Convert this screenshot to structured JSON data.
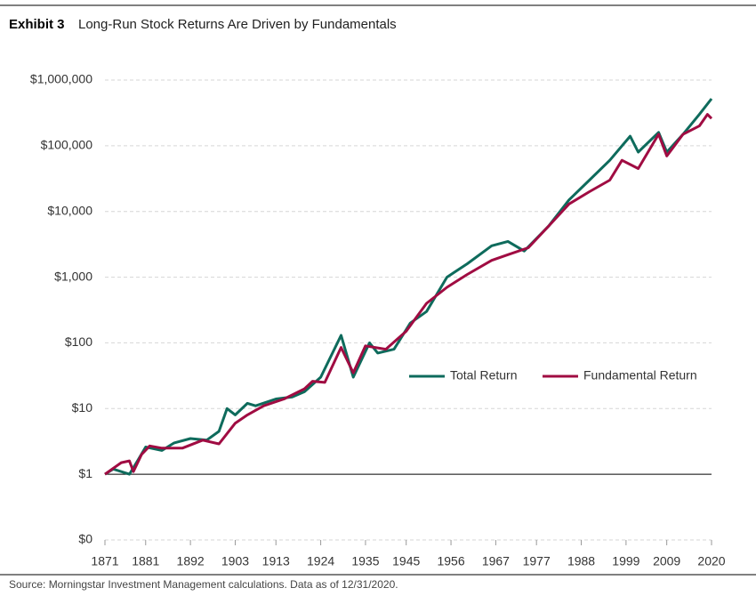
{
  "chart_data": {
    "type": "line",
    "exhibit": "Exhibit 3",
    "title": "Long-Run Stock Returns Are Driven by Fundamentals",
    "source": "Source: Morningstar Investment Management calculations. Data as of 12/31/2020.",
    "log_y": true,
    "grid": true,
    "legend": "center-right",
    "xlim": [
      1871,
      2020
    ],
    "xticks": [
      1871,
      1881,
      1892,
      1903,
      1913,
      1924,
      1935,
      1945,
      1956,
      1967,
      1977,
      1988,
      1999,
      2009,
      2020
    ],
    "ylim": [
      0.1,
      1000000
    ],
    "yticks": [
      {
        "value": 0.1,
        "label": "$0"
      },
      {
        "value": 1,
        "label": "$1"
      },
      {
        "value": 10,
        "label": "$10"
      },
      {
        "value": 100,
        "label": "$100"
      },
      {
        "value": 1000,
        "label": "$1,000"
      },
      {
        "value": 10000,
        "label": "$10,000"
      },
      {
        "value": 100000,
        "label": "$100,000"
      },
      {
        "value": 1000000,
        "label": "$1,000,000"
      }
    ],
    "series": [
      {
        "name": "Total Return",
        "color": "#0e6b5c",
        "x": [
          1871,
          1873,
          1877,
          1879,
          1881,
          1885,
          1888,
          1892,
          1896,
          1899,
          1901,
          1903,
          1906,
          1908,
          1913,
          1917,
          1920,
          1924,
          1929,
          1932,
          1936,
          1938,
          1942,
          1946,
          1950,
          1955,
          1960,
          1966,
          1970,
          1974,
          1980,
          1985,
          1990,
          1995,
          2000,
          2002,
          2007,
          2009,
          2013,
          2017,
          2020
        ],
        "values": [
          1,
          1.2,
          1.0,
          1.6,
          2.6,
          2.3,
          3.0,
          3.5,
          3.3,
          4.5,
          10,
          8,
          12,
          11,
          14,
          15,
          18,
          30,
          130,
          30,
          100,
          70,
          80,
          200,
          300,
          1000,
          1600,
          3000,
          3500,
          2500,
          6000,
          15000,
          30000,
          60000,
          140000,
          80000,
          160000,
          80000,
          150000,
          300000,
          520000
        ]
      },
      {
        "name": "Fundamental Return",
        "color": "#a00c42",
        "x": [
          1871,
          1875,
          1877,
          1878,
          1880,
          1882,
          1885,
          1890,
          1895,
          1899,
          1903,
          1906,
          1910,
          1915,
          1920,
          1922,
          1925,
          1929,
          1932,
          1935,
          1940,
          1945,
          1950,
          1955,
          1960,
          1966,
          1970,
          1975,
          1980,
          1985,
          1990,
          1995,
          1998,
          2002,
          2007,
          2009,
          2013,
          2017,
          2019,
          2020
        ],
        "values": [
          1,
          1.5,
          1.6,
          1.1,
          2.0,
          2.7,
          2.5,
          2.5,
          3.3,
          2.9,
          6,
          8,
          11,
          14,
          20,
          26,
          25,
          85,
          35,
          90,
          80,
          150,
          400,
          700,
          1100,
          1800,
          2200,
          2800,
          6000,
          13000,
          20000,
          30000,
          60000,
          45000,
          150000,
          70000,
          150000,
          200000,
          300000,
          260000
        ]
      }
    ]
  }
}
